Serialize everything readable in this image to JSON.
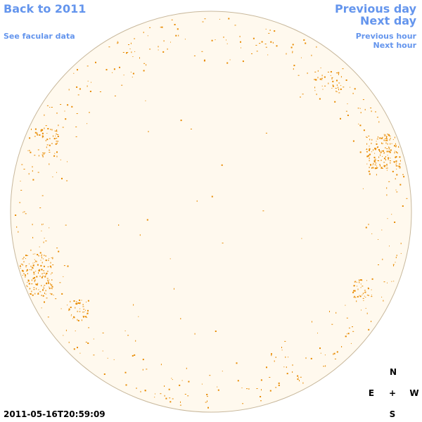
{
  "header": {
    "back_link": "Back to 2011",
    "facular_link": "See facular data",
    "previous_day": "Previous day",
    "next_day": "Next day",
    "previous_hour": "Previous hour",
    "next_hour": "Next hour"
  },
  "footer": {
    "timestamp": "2011-05-16T20:59:09"
  },
  "compass": {
    "north": "N",
    "east": "E",
    "center": "+",
    "west": "W",
    "south": "S"
  }
}
